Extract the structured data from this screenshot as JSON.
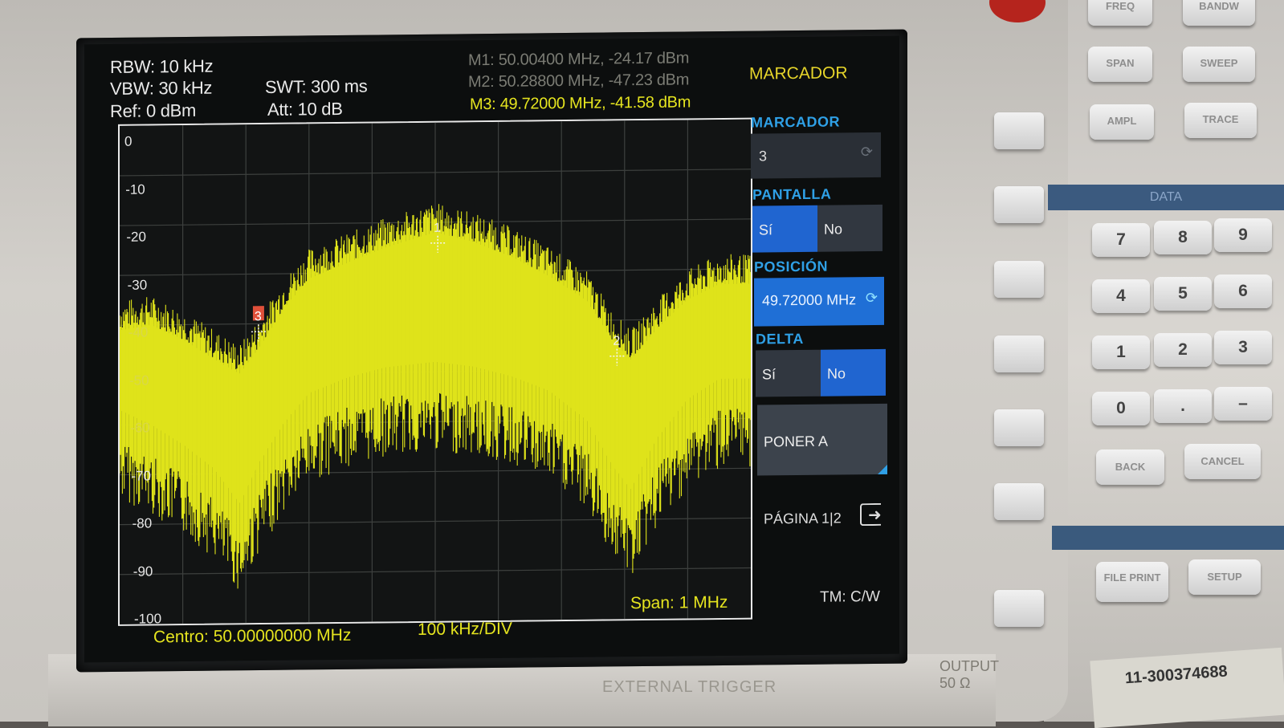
{
  "header": {
    "rbw": "RBW: 10 kHz",
    "vbw": "VBW: 30 kHz",
    "ref": "Ref: 0 dBm",
    "swt": "SWT: 300 ms",
    "att": "Att: 10 dB",
    "m1": "M1: 50.00400 MHz, -24.17 dBm",
    "m2": "M2: 50.28800 MHz, -47.23 dBm",
    "m3": "M3: 49.72000 MHz, -41.58 dBm"
  },
  "footer": {
    "center": "Centro: 50.00000000 MHz",
    "div": "100 kHz/DIV",
    "span": "Span: 1 MHz",
    "tm": "TM: C/W"
  },
  "chart_data": {
    "type": "line",
    "ylim": [
      -100,
      0
    ],
    "yticks": [
      "0",
      "-10",
      "-20",
      "-30",
      "-40",
      "-50",
      "-60",
      "-70",
      "-80",
      "-90",
      "-100"
    ],
    "xlim": [
      49.5,
      50.5
    ],
    "x_unit": "MHz",
    "y_unit": "dBm",
    "grid": true,
    "trace_color": "#e8ec1f",
    "envelope": {
      "x": [
        49.5,
        49.55,
        49.6,
        49.65,
        49.69,
        49.72,
        49.76,
        49.8,
        49.86,
        49.92,
        50.0,
        50.06,
        50.12,
        50.18,
        50.24,
        50.28,
        50.31,
        50.35,
        50.4,
        50.45,
        50.5
      ],
      "peak": [
        -41,
        -40,
        -43,
        -47,
        -50,
        -45,
        -37,
        -31,
        -28,
        -25,
        -22,
        -24,
        -27,
        -31,
        -36,
        -44,
        -48,
        -42,
        -36,
        -33,
        -33
      ],
      "floor": [
        -63,
        -66,
        -70,
        -75,
        -82,
        -74,
        -66,
        -60,
        -57,
        -55,
        -54,
        -55,
        -57,
        -60,
        -66,
        -75,
        -80,
        -70,
        -62,
        -58,
        -58
      ]
    },
    "markers": [
      {
        "label": "1",
        "x": 50.004,
        "y": -24.17
      },
      {
        "label": "2",
        "x": 50.288,
        "y": -47.23
      },
      {
        "label": "3",
        "x": 49.72,
        "y": -41.58
      }
    ]
  },
  "softkeys": {
    "title": "MARCADOR",
    "marker_label": "MARCADOR",
    "marker_value": "3",
    "pantalla_label": "PANTALLA",
    "pantalla_si": "Sí",
    "pantalla_no": "No",
    "posicion_label": "POSICIÓN",
    "posicion_value": "49.72000 MHz",
    "delta_label": "DELTA",
    "delta_si": "Sí",
    "delta_no": "No",
    "poner_a": "PONER A",
    "pagina": "PÁGINA 1|2"
  },
  "hardware": {
    "freq": "FREQ",
    "bandw": "BANDW",
    "span": "SPAN",
    "sweep": "SWEEP",
    "ampl": "AMPL",
    "trace": "TRACE",
    "data": "DATA",
    "back": "BACK",
    "cancel": "CANCEL",
    "file_print": "FILE PRINT",
    "setup": "SETUP",
    "keys": [
      "7",
      "8",
      "9",
      "4",
      "5",
      "6",
      "1",
      "2",
      "3",
      "0",
      ".",
      "–"
    ],
    "output": "OUTPUT 50 Ω",
    "external_trigger": "EXTERNAL TRIGGER",
    "serial": "11-300374688"
  }
}
